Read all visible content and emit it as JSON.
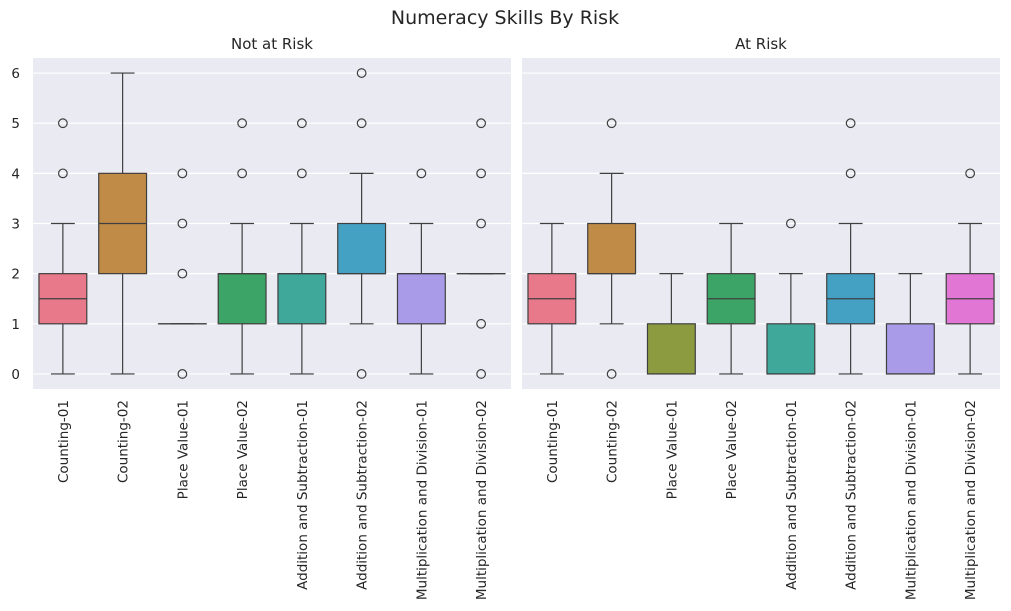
{
  "figure": {
    "title": "Numeracy Skills By Risk"
  },
  "style": {
    "plot_bg": "#eaeaf2",
    "grid_color": "#ffffff",
    "line_color": "#3f3f3f"
  },
  "chart_data": [
    {
      "type": "box",
      "title": "Not at Risk",
      "categories": [
        "Counting-01",
        "Counting-02",
        "Place Value-01",
        "Place Value-02",
        "Addition and Subtraction-01",
        "Addition and Subtraction-02",
        "Multiplication and Division-01",
        "Multiplication and Division-02"
      ],
      "colors": [
        "#e8798a",
        "#bf8b46",
        "#b0a53c",
        "#3ca466",
        "#40a89a",
        "#45a1c4",
        "#a99be7",
        "#e176d4"
      ],
      "boxes": [
        {
          "whislo": 0,
          "q1": 1,
          "med": 1.5,
          "q3": 2,
          "whishi": 3,
          "fliers": [
            4,
            5
          ]
        },
        {
          "whislo": 0,
          "q1": 2,
          "med": 3,
          "q3": 4,
          "whishi": 6,
          "fliers": []
        },
        {
          "whislo": 1,
          "q1": 1,
          "med": 1,
          "q3": 1,
          "whishi": 1,
          "fliers": [
            0,
            2,
            3,
            4
          ]
        },
        {
          "whislo": 0,
          "q1": 1,
          "med": 2,
          "q3": 2,
          "whishi": 3,
          "fliers": [
            4,
            5
          ]
        },
        {
          "whislo": 0,
          "q1": 1,
          "med": 2,
          "q3": 2,
          "whishi": 3,
          "fliers": [
            4,
            5
          ]
        },
        {
          "whislo": 1,
          "q1": 2,
          "med": 2,
          "q3": 3,
          "whishi": 4,
          "fliers": [
            0,
            5,
            6
          ]
        },
        {
          "whislo": 0,
          "q1": 1,
          "med": 2,
          "q3": 2,
          "whishi": 3,
          "fliers": [
            4
          ]
        },
        {
          "whislo": 2,
          "q1": 2,
          "med": 2,
          "q3": 2,
          "whishi": 2,
          "fliers": [
            0,
            1,
            3,
            4,
            5
          ]
        }
      ],
      "yticks": [
        0,
        1,
        2,
        3,
        4,
        5,
        6
      ],
      "ylim": [
        -0.3,
        6.3
      ],
      "grid": true
    },
    {
      "type": "box",
      "title": "At Risk",
      "categories": [
        "Counting-01",
        "Counting-02",
        "Place Value-01",
        "Place Value-02",
        "Addition and Subtraction-01",
        "Addition and Subtraction-02",
        "Multiplication and Division-01",
        "Multiplication and Division-02"
      ],
      "colors": [
        "#e8798a",
        "#bf8b46",
        "#8c9b40",
        "#3ca466",
        "#40a89a",
        "#45a1c4",
        "#a99be7",
        "#e176d4"
      ],
      "boxes": [
        {
          "whislo": 0,
          "q1": 1,
          "med": 1.5,
          "q3": 2,
          "whishi": 3,
          "fliers": []
        },
        {
          "whislo": 1,
          "q1": 2,
          "med": 2,
          "q3": 3,
          "whishi": 4,
          "fliers": [
            0,
            5
          ]
        },
        {
          "whislo": 0,
          "q1": 0,
          "med": 0,
          "q3": 1,
          "whishi": 2,
          "fliers": []
        },
        {
          "whislo": 0,
          "q1": 1,
          "med": 1.5,
          "q3": 2,
          "whishi": 3,
          "fliers": []
        },
        {
          "whislo": 0,
          "q1": 0,
          "med": 0,
          "q3": 1,
          "whishi": 2,
          "fliers": [
            3
          ]
        },
        {
          "whislo": 0,
          "q1": 1,
          "med": 1.5,
          "q3": 2,
          "whishi": 3,
          "fliers": [
            4,
            5
          ]
        },
        {
          "whislo": 0,
          "q1": 0,
          "med": 0,
          "q3": 1,
          "whishi": 2,
          "fliers": []
        },
        {
          "whislo": 0,
          "q1": 1,
          "med": 1.5,
          "q3": 2,
          "whishi": 3,
          "fliers": [
            4
          ]
        }
      ],
      "yticks": [
        0,
        1,
        2,
        3,
        4,
        5,
        6
      ],
      "ylim": [
        -0.3,
        6.3
      ],
      "grid": true
    }
  ]
}
